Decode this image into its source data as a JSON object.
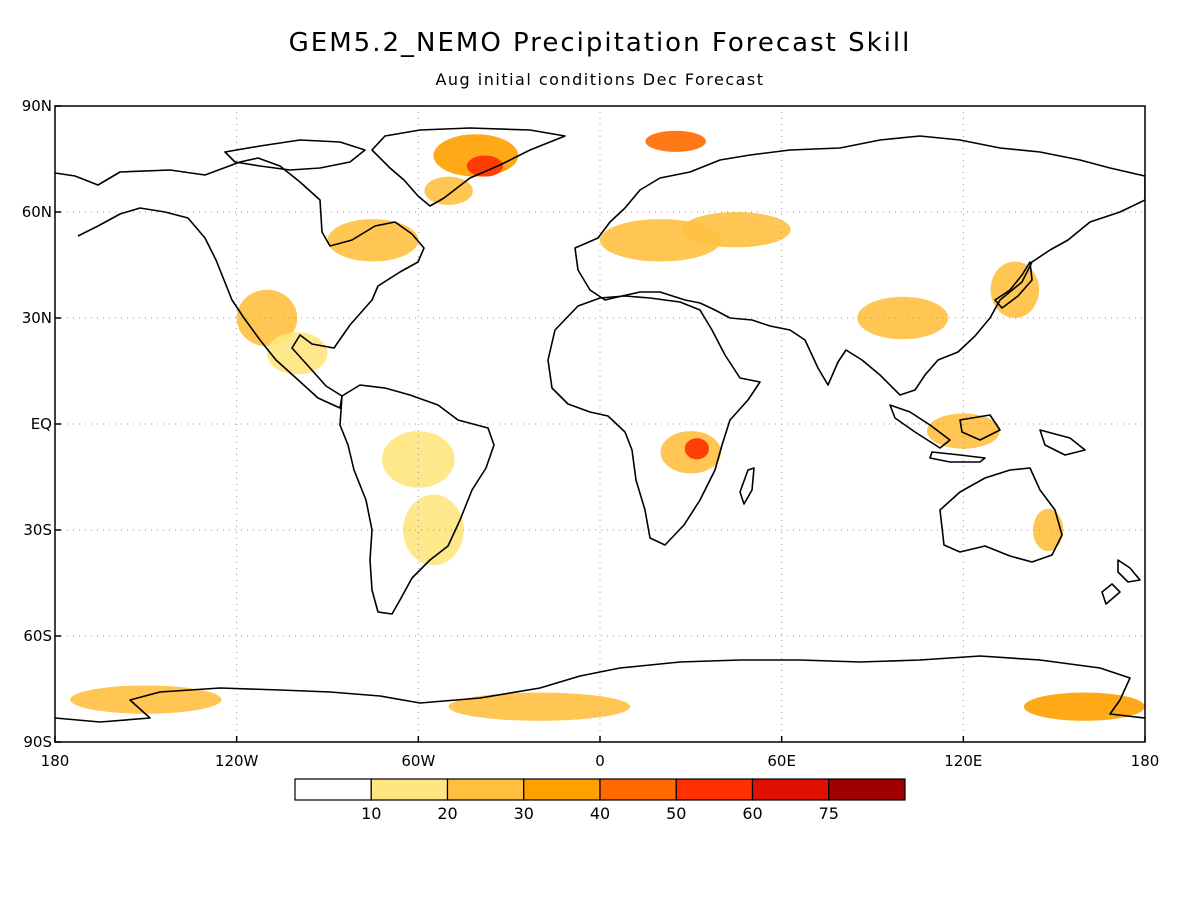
{
  "title": "GEM5.2_NEMO Precipitation Forecast Skill",
  "subtitle": "Aug initial conditions   Dec Forecast",
  "map": {
    "projection": "equirectangular",
    "lon_range": [
      -180,
      180
    ],
    "lat_range": [
      -90,
      90
    ],
    "grid": "dotted",
    "lat_ticks": [
      {
        "value": 90,
        "label": "90N"
      },
      {
        "value": 60,
        "label": "60N"
      },
      {
        "value": 30,
        "label": "30N"
      },
      {
        "value": 0,
        "label": "EQ"
      },
      {
        "value": -30,
        "label": "30S"
      },
      {
        "value": -60,
        "label": "60S"
      },
      {
        "value": -90,
        "label": "90S"
      }
    ],
    "lon_ticks": [
      {
        "value": -180,
        "label": "180"
      },
      {
        "value": -120,
        "label": "120W"
      },
      {
        "value": -60,
        "label": "60W"
      },
      {
        "value": 0,
        "label": "0"
      },
      {
        "value": 60,
        "label": "60E"
      },
      {
        "value": 120,
        "label": "120E"
      },
      {
        "value": 180,
        "label": "180"
      }
    ]
  },
  "legend": {
    "colors": [
      "#ffffff",
      "#ffe680",
      "#ffc040",
      "#ffa000",
      "#ff6a00",
      "#ff3000",
      "#e01000",
      "#a00000"
    ],
    "labels": [
      "10",
      "20",
      "30",
      "40",
      "50",
      "60",
      "75"
    ]
  },
  "skill_regions": [
    {
      "lon": -41,
      "lat": 76,
      "rx": 14,
      "ry": 6,
      "level": 3
    },
    {
      "lon": -38,
      "lat": 73,
      "rx": 6,
      "ry": 3,
      "level": 5
    },
    {
      "lon": -50,
      "lat": 66,
      "rx": 8,
      "ry": 4,
      "level": 2
    },
    {
      "lon": -75,
      "lat": 52,
      "rx": 15,
      "ry": 6,
      "level": 2
    },
    {
      "lon": -110,
      "lat": 30,
      "rx": 10,
      "ry": 8,
      "level": 2
    },
    {
      "lon": -100,
      "lat": 20,
      "rx": 10,
      "ry": 6,
      "level": 1
    },
    {
      "lon": -60,
      "lat": -10,
      "rx": 12,
      "ry": 8,
      "level": 1
    },
    {
      "lon": -55,
      "lat": -30,
      "rx": 10,
      "ry": 10,
      "level": 1
    },
    {
      "lon": 20,
      "lat": 52,
      "rx": 20,
      "ry": 6,
      "level": 2
    },
    {
      "lon": 45,
      "lat": 55,
      "rx": 18,
      "ry": 5,
      "level": 2
    },
    {
      "lon": 25,
      "lat": 80,
      "rx": 10,
      "ry": 3,
      "level": 4
    },
    {
      "lon": 30,
      "lat": -8,
      "rx": 10,
      "ry": 6,
      "level": 2
    },
    {
      "lon": 32,
      "lat": -7,
      "rx": 4,
      "ry": 3,
      "level": 5
    },
    {
      "lon": 100,
      "lat": 30,
      "rx": 15,
      "ry": 6,
      "level": 2
    },
    {
      "lon": 137,
      "lat": 38,
      "rx": 8,
      "ry": 8,
      "level": 2
    },
    {
      "lon": 120,
      "lat": -2,
      "rx": 12,
      "ry": 5,
      "level": 2
    },
    {
      "lon": 148,
      "lat": -30,
      "rx": 5,
      "ry": 6,
      "level": 2
    },
    {
      "lon": -150,
      "lat": -78,
      "rx": 25,
      "ry": 4,
      "level": 2
    },
    {
      "lon": -20,
      "lat": -80,
      "rx": 30,
      "ry": 4,
      "level": 2
    },
    {
      "lon": 160,
      "lat": -80,
      "rx": 20,
      "ry": 4,
      "level": 3
    }
  ]
}
